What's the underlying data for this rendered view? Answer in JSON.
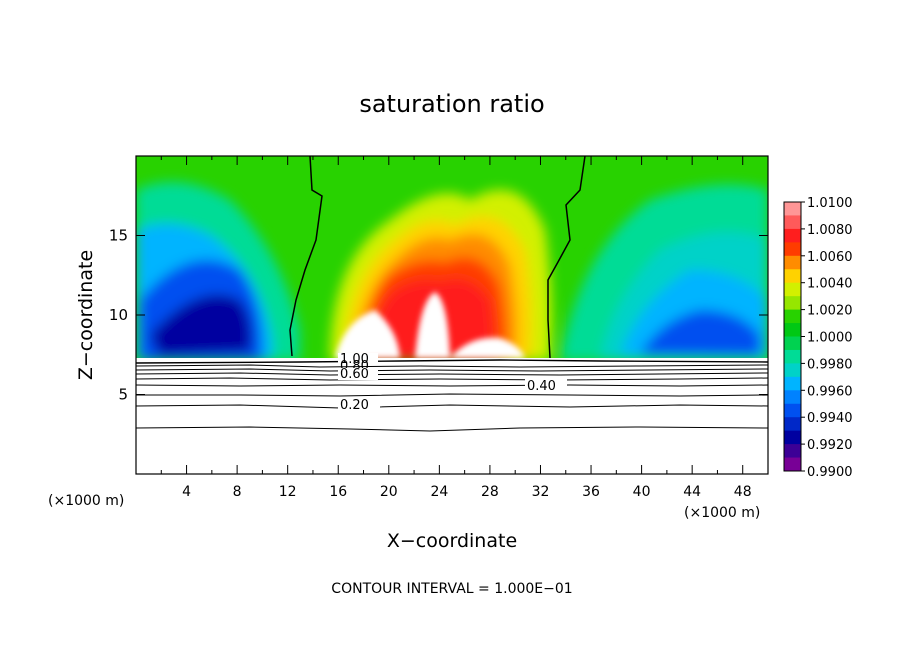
{
  "chart_data": {
    "type": "heatmap",
    "title": "saturation ratio",
    "xlabel": "X−coordinate",
    "ylabel": "Z−coordinate",
    "x_unit_left": "(×1000 m)",
    "x_unit_right": "(×1000 m)",
    "xlim": [
      0,
      50
    ],
    "ylim": [
      0,
      20
    ],
    "xticks": [
      4,
      8,
      12,
      16,
      20,
      24,
      28,
      32,
      36,
      40,
      44,
      48
    ],
    "xticks_minor": [
      2,
      6,
      10,
      14,
      18,
      22,
      26,
      30,
      34,
      38,
      42,
      46
    ],
    "yticks": [
      5,
      10,
      15
    ],
    "footer": "CONTOUR INTERVAL = 1.000E−01",
    "colorbar": {
      "labels": [
        "1.0100",
        "1.0080",
        "1.0060",
        "1.0040",
        "1.0020",
        "1.0000",
        "0.9980",
        "0.9960",
        "0.9940",
        "0.9920",
        "0.9900"
      ],
      "colors": [
        "#ff9696",
        "#ff5a5a",
        "#ff1e1e",
        "#ff3c00",
        "#ff8c00",
        "#ffd200",
        "#d2f000",
        "#96e600",
        "#28d200",
        "#00c814",
        "#00d250",
        "#00dc96",
        "#00d2c8",
        "#00b4ff",
        "#0082ff",
        "#0050f0",
        "#0028c8",
        "#0000a0",
        "#3c0096",
        "#780096"
      ]
    },
    "contour_labels": [
      "1.00",
      "0.80",
      "0.60",
      "0.40",
      "0.20"
    ],
    "contour_levels": [
      1.0,
      0.8,
      0.6,
      0.4,
      0.2
    ]
  }
}
